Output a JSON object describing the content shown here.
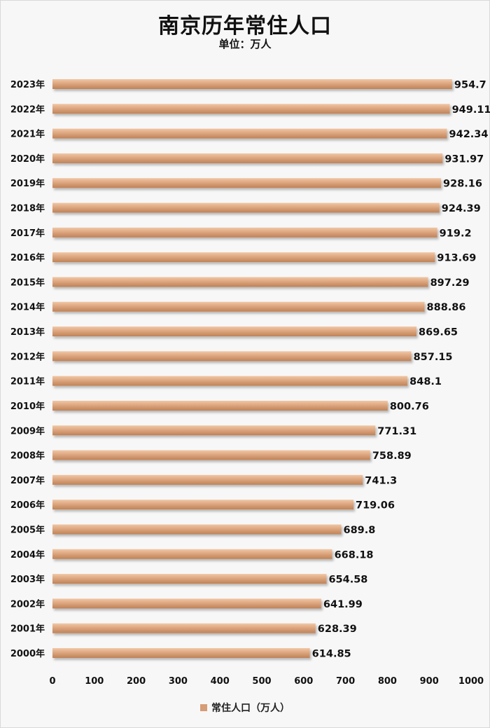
{
  "title": "南京历年常住人口",
  "subtitle": "单位：万人",
  "legend": {
    "label": "常住人口（万人）",
    "color": "#d79d76"
  },
  "chart_data": {
    "type": "bar",
    "orientation": "horizontal",
    "title": "南京历年常住人口",
    "subtitle": "单位：万人",
    "categories": [
      "2023年",
      "2022年",
      "2021年",
      "2020年",
      "2019年",
      "2018年",
      "2017年",
      "2016年",
      "2015年",
      "2014年",
      "2013年",
      "2012年",
      "2011年",
      "2010年",
      "2009年",
      "2008年",
      "2007年",
      "2006年",
      "2005年",
      "2004年",
      "2003年",
      "2002年",
      "2001年",
      "2000年"
    ],
    "series": [
      {
        "name": "常住人口（万人）",
        "values": [
          954.7,
          949.11,
          942.34,
          931.97,
          928.16,
          924.39,
          919.2,
          913.69,
          897.29,
          888.86,
          869.65,
          857.15,
          848.1,
          800.76,
          771.31,
          758.89,
          741.3,
          719.06,
          689.8,
          668.18,
          654.58,
          641.99,
          628.39,
          614.85
        ],
        "labels": [
          "954.7",
          "949.11",
          "942.34",
          "931.97",
          "928.16",
          "924.39",
          "919.2",
          "913.69",
          "897.29",
          "888.86",
          "869.65",
          "857.15",
          "848.1",
          "800.76",
          "771.31",
          "758.89",
          "741.3",
          "719.06",
          "689.8",
          "668.18",
          "654.58",
          "641.99",
          "628.39",
          "614.85"
        ],
        "color": "#d79d76"
      }
    ],
    "xlim": [
      0,
      1000
    ],
    "xticks": [
      "0",
      "100",
      "200",
      "300",
      "400",
      "500",
      "600",
      "700",
      "800",
      "900",
      "1000"
    ],
    "grid": false,
    "legend_position": "bottom"
  }
}
